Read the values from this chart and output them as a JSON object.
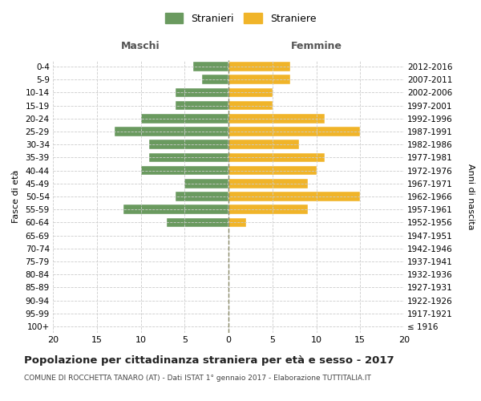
{
  "age_groups": [
    "100+",
    "95-99",
    "90-94",
    "85-89",
    "80-84",
    "75-79",
    "70-74",
    "65-69",
    "60-64",
    "55-59",
    "50-54",
    "45-49",
    "40-44",
    "35-39",
    "30-34",
    "25-29",
    "20-24",
    "15-19",
    "10-14",
    "5-9",
    "0-4"
  ],
  "birth_years": [
    "≤ 1916",
    "1917-1921",
    "1922-1926",
    "1927-1931",
    "1932-1936",
    "1937-1941",
    "1942-1946",
    "1947-1951",
    "1952-1956",
    "1957-1961",
    "1962-1966",
    "1967-1971",
    "1972-1976",
    "1977-1981",
    "1982-1986",
    "1987-1991",
    "1992-1996",
    "1997-2001",
    "2002-2006",
    "2007-2011",
    "2012-2016"
  ],
  "males": [
    0,
    0,
    0,
    0,
    0,
    0,
    0,
    0,
    7,
    12,
    6,
    5,
    10,
    9,
    9,
    13,
    10,
    6,
    6,
    3,
    4
  ],
  "females": [
    0,
    0,
    0,
    0,
    0,
    0,
    0,
    0,
    2,
    9,
    15,
    9,
    10,
    11,
    8,
    15,
    11,
    5,
    5,
    7,
    7
  ],
  "male_color": "#6a9a5f",
  "female_color": "#f0b429",
  "title": "Popolazione per cittadinanza straniera per età e sesso - 2017",
  "subtitle": "COMUNE DI ROCCHETTA TANARO (AT) - Dati ISTAT 1° gennaio 2017 - Elaborazione TUTTITALIA.IT",
  "xlabel_left": "Maschi",
  "xlabel_right": "Femmine",
  "ylabel_left": "Fasce di età",
  "ylabel_right": "Anni di nascita",
  "legend_male": "Stranieri",
  "legend_female": "Straniere",
  "xlim": 20,
  "background_color": "#ffffff",
  "grid_color": "#cccccc"
}
